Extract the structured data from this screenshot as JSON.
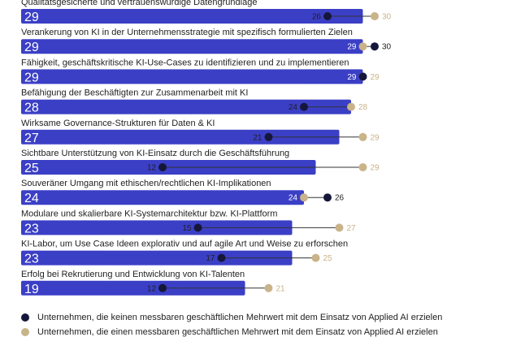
{
  "chart_data": {
    "type": "bar",
    "categories": [
      "Qualitätsgesicherte und vertrauenswürdige Datengrundlage",
      "Verankerung von KI in der Unternehmensstrategie mit spezifisch formulierten Zielen",
      "Fähigkeit, geschäftskritische KI-Use-Cases zu identifizieren und zu implementieren",
      "Befähigung der Beschäftigten zur Zusammenarbeit mit KI",
      "Wirksame Governance-Strukturen für Daten & KI",
      "Sichtbare Unterstützung von KI-Einsatz durch die Geschäftsführung",
      "Souveräner Umgang mit ethischen/rechtlichen KI-Implikationen",
      "Modulare und skalierbare KI-Systemarchitektur bzw. KI-Plattform",
      "KI-Labor, um Use Case Ideen explorativ und auf agile Art und Weise zu erforschen",
      "Erfolg bei Rekrutierung und Entwicklung von KI-Talenten"
    ],
    "values": [
      29,
      29,
      29,
      28,
      27,
      25,
      24,
      23,
      23,
      19
    ],
    "series": [
      {
        "name": "Unternehmen, die keinen messbaren geschäftlichen Mehrwert mit dem Einsatz von Applied AI erzielen",
        "values": [
          26,
          30,
          29,
          24,
          21,
          12,
          26,
          15,
          17,
          12
        ]
      },
      {
        "name": "Unternehmen, die einen messbaren geschäftlichen Mehrwert mit dem Einsatz von Applied AI erzielen",
        "values": [
          30,
          29,
          29,
          28,
          29,
          29,
          24,
          27,
          25,
          21
        ]
      }
    ],
    "xlim": [
      0,
      30
    ],
    "colors": {
      "bar": "#3b3fc6",
      "no_value": "#15173a",
      "value": "#c9b389",
      "connector": "#333333"
    }
  }
}
